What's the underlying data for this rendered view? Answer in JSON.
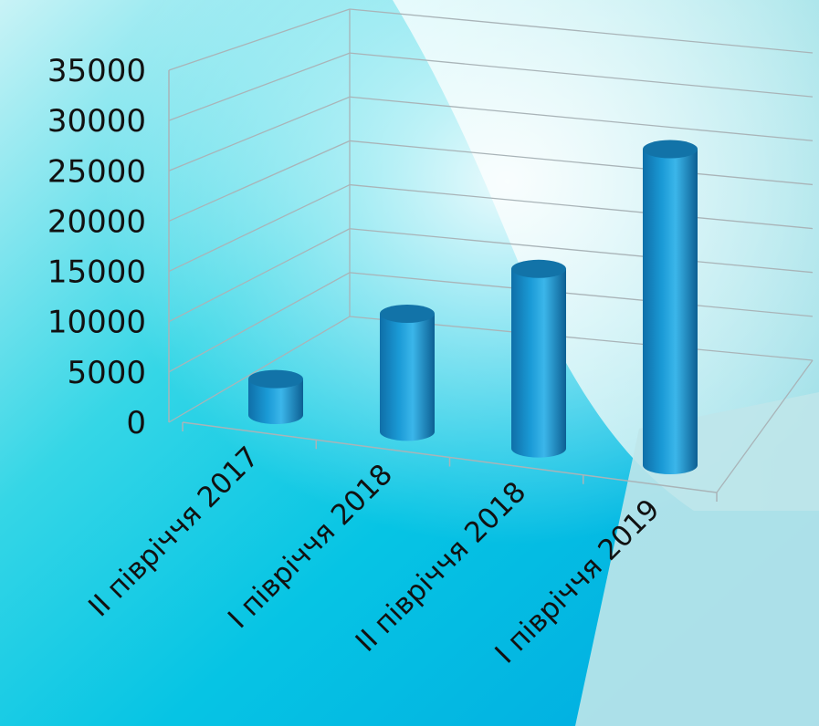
{
  "chart_data": {
    "type": "bar",
    "title": "",
    "xlabel": "",
    "ylabel": "",
    "categories": [
      "II півріччя 2017",
      "I півріччя 2018",
      "II півріччя 2018",
      "I півріччя 2019"
    ],
    "values": [
      3500,
      11500,
      17500,
      30800
    ],
    "ylim": [
      0,
      35000
    ],
    "yticks": [
      "0",
      "5000",
      "10000",
      "15000",
      "20000",
      "25000",
      "30000",
      "35000"
    ],
    "grid": true,
    "legend": "none",
    "style": "3d-cylinder",
    "colors": {
      "bar": "#1a9ad6",
      "bar_top": "#1273a8",
      "grid": "#a9b4b8"
    }
  }
}
